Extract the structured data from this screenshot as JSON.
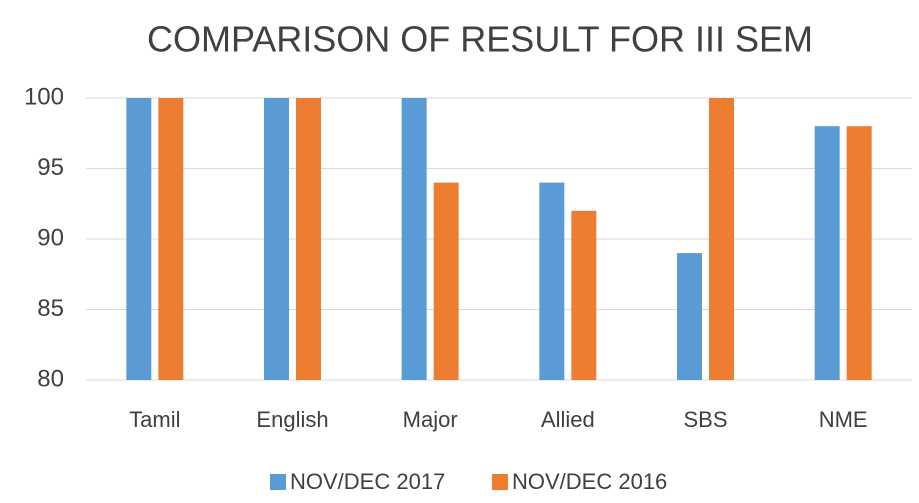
{
  "chart_data": {
    "type": "bar",
    "title": "COMPARISON OF RESULT FOR III SEM",
    "categories": [
      "Tamil",
      "English",
      "Major",
      "Allied",
      "SBS",
      "NME"
    ],
    "series": [
      {
        "name": "NOV/DEC 2017",
        "color": "#5b9bd5",
        "values": [
          100,
          100,
          100,
          94,
          89,
          98
        ]
      },
      {
        "name": "NOV/DEC 2016",
        "color": "#ed7d31",
        "values": [
          100,
          100,
          94,
          92,
          100,
          98
        ]
      }
    ],
    "ylim": [
      80,
      100
    ],
    "yticks": [
      80,
      85,
      90,
      95,
      100
    ],
    "grid": true,
    "legend": "bottom"
  }
}
